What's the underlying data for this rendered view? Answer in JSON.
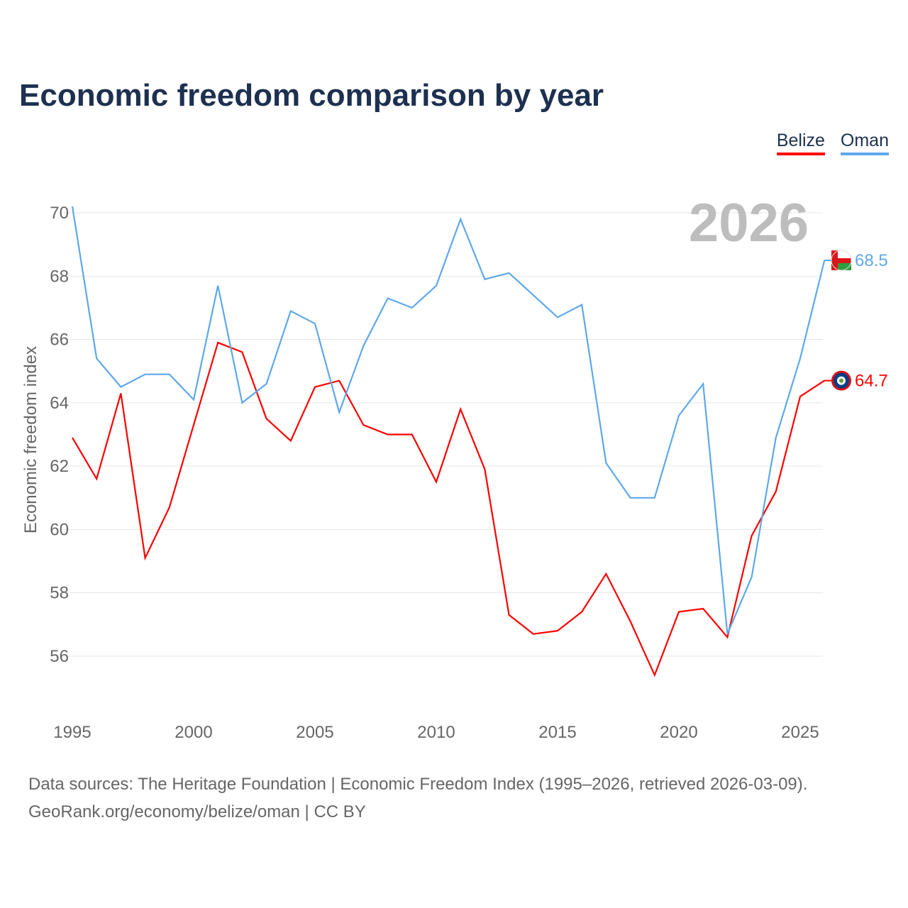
{
  "chart_data": {
    "type": "line",
    "title": "Economic freedom comparison by year",
    "ylabel": "Economic freedom index",
    "xlabel": "",
    "ylim": [
      54.5,
      70.5
    ],
    "xlim": [
      1995,
      2026
    ],
    "yticks": [
      56,
      58,
      60,
      62,
      64,
      66,
      68,
      70
    ],
    "xticks": [
      1995,
      2000,
      2005,
      2010,
      2015,
      2020,
      2025
    ],
    "grid": true,
    "legend_position": "top-right",
    "year_label": "2026",
    "x": [
      1995,
      1996,
      1997,
      1998,
      1999,
      2000,
      2001,
      2002,
      2003,
      2004,
      2005,
      2006,
      2007,
      2008,
      2009,
      2010,
      2011,
      2012,
      2013,
      2014,
      2015,
      2016,
      2017,
      2018,
      2019,
      2020,
      2021,
      2022,
      2023,
      2024,
      2025,
      2026
    ],
    "series": [
      {
        "name": "Belize",
        "color": "#ff0000",
        "end_label": "64.7",
        "values": [
          62.9,
          61.6,
          64.3,
          59.1,
          60.7,
          63.3,
          65.9,
          65.6,
          63.5,
          62.8,
          64.5,
          64.7,
          63.3,
          63.0,
          63.0,
          61.5,
          63.8,
          61.9,
          57.3,
          56.7,
          56.8,
          57.4,
          58.6,
          57.1,
          55.4,
          57.4,
          57.5,
          56.6,
          59.8,
          61.2,
          64.2,
          64.7
        ]
      },
      {
        "name": "Oman",
        "color": "#5ea8ea",
        "end_label": "68.5",
        "values": [
          70.2,
          65.4,
          64.5,
          64.9,
          64.9,
          64.1,
          67.7,
          64.0,
          64.6,
          66.9,
          66.5,
          63.7,
          65.8,
          67.3,
          67.0,
          67.7,
          69.8,
          67.9,
          68.1,
          67.4,
          66.7,
          67.1,
          62.1,
          61.0,
          61.0,
          63.6,
          64.6,
          56.7,
          58.5,
          62.9,
          65.4,
          68.5
        ]
      }
    ]
  },
  "footer": {
    "line1": "Data sources: The Heritage Foundation | Economic Freedom Index (1995–2026, retrieved 2026-03-09).",
    "line2": "GeoRank.org/economy/belize/oman | CC BY"
  }
}
